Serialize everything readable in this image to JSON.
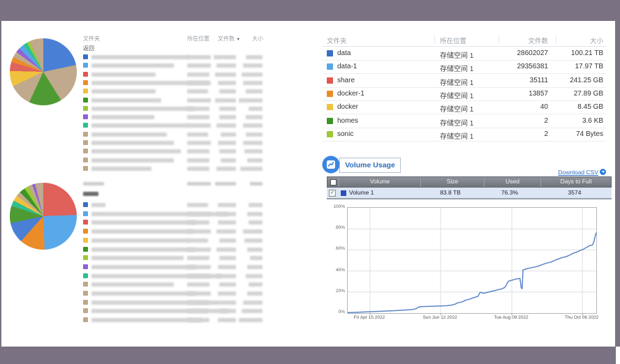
{
  "frame": {
    "accent_color": "#7a7282"
  },
  "left": {
    "table1": {
      "headers": {
        "folder": "文件夹",
        "location": "所在位置",
        "count": "文件数",
        "size": "大小"
      },
      "sort_icon": "▼",
      "back_label": "返回",
      "rows": [
        [
          "#3a6fc4",
          140,
          34,
          32,
          24
        ],
        [
          "#57a7e8",
          118,
          34,
          28,
          28
        ],
        [
          "#e2574f",
          92,
          32,
          30,
          30
        ],
        [
          "#ec8c28",
          168,
          34,
          26,
          28
        ],
        [
          "#f0c13d",
          92,
          30,
          24,
          24
        ],
        [
          "#3d9426",
          100,
          34,
          30,
          34
        ],
        [
          "#9cc83a",
          148,
          32,
          24,
          20
        ],
        [
          "#8f62d8",
          90,
          32,
          24,
          24
        ],
        [
          "#2fbf8f",
          140,
          34,
          28,
          28
        ],
        [
          "#bfa888",
          108,
          30,
          22,
          24
        ],
        [
          "#bfa888",
          118,
          34,
          26,
          28
        ],
        [
          "#bfa888",
          128,
          32,
          24,
          26
        ],
        [
          "#bfa888",
          118,
          32,
          22,
          22
        ],
        [
          "#bfa888",
          86,
          32,
          28,
          32
        ]
      ]
    },
    "table2": {
      "header_bar_widths": [
        30,
        34,
        30,
        18
      ],
      "back_bar_width": 22,
      "rows": [
        [
          "#3a6fc4",
          20,
          30,
          26,
          20
        ],
        [
          "#57a7e8",
          196,
          34,
          28,
          22
        ],
        [
          "#e2574f",
          150,
          32,
          26,
          20
        ],
        [
          "#ec8c28",
          146,
          34,
          28,
          28
        ],
        [
          "#f0c13d",
          140,
          30,
          24,
          26
        ],
        [
          "#3d9426",
          148,
          34,
          28,
          22
        ],
        [
          "#9cc83a",
          132,
          32,
          24,
          18
        ],
        [
          "#8f62d8",
          150,
          34,
          26,
          22
        ],
        [
          "#2fbf8f",
          186,
          34,
          28,
          24
        ],
        [
          "#bfa888",
          118,
          32,
          24,
          20
        ],
        [
          "#bfa888",
          150,
          34,
          26,
          22
        ],
        [
          "#bfa888",
          186,
          32,
          22,
          28
        ],
        [
          "#bfa888",
          196,
          30,
          24,
          30
        ],
        [
          "#bfa888",
          158,
          32,
          26,
          34
        ]
      ]
    }
  },
  "right": {
    "folder_table": {
      "headers": {
        "folder": "文件夹",
        "location": "所在位置",
        "count": "文件数",
        "size": "大小"
      },
      "rows": [
        {
          "name": "data",
          "color": "#3a6fc4",
          "location": "存储空间 1",
          "count": "28602027",
          "size": "100.21 TB"
        },
        {
          "name": "data-1",
          "color": "#57a7e8",
          "location": "存储空间 1",
          "count": "29356381",
          "size": "17.97 TB"
        },
        {
          "name": "share",
          "color": "#e2574f",
          "location": "存储空间 1",
          "count": "35111",
          "size": "241.25 GB"
        },
        {
          "name": "docker-1",
          "color": "#ec8c28",
          "location": "存储空间 1",
          "count": "13857",
          "size": "27.89 GB"
        },
        {
          "name": "docker",
          "color": "#f0c13d",
          "location": "存储空间 1",
          "count": "40",
          "size": "8.45 GB"
        },
        {
          "name": "homes",
          "color": "#3d9426",
          "location": "存储空间 1",
          "count": "2",
          "size": "3.6 KB"
        },
        {
          "name": "sonic",
          "color": "#9cc83a",
          "location": "存储空间 1",
          "count": "2",
          "size": "74 Bytes"
        }
      ]
    },
    "volume_usage": {
      "title": "Volume Usage",
      "download_csv": "Download CSV",
      "table": {
        "headers": [
          "Volume",
          "Size",
          "Used",
          "Days to Full"
        ],
        "rows": [
          {
            "name": "Volume 1",
            "color": "#2b50b8",
            "size": "83.8 TB",
            "used": "76.3%",
            "days_to_full": "3574",
            "checked": true
          }
        ]
      }
    }
  },
  "chart_data": [
    {
      "name": "volume1_usage_over_time",
      "type": "line",
      "series_name": "Volume 1",
      "line_color": "#5b85c6",
      "ylim": [
        0,
        100
      ],
      "yticks": [
        "0%",
        "20%",
        "40%",
        "60%",
        "80%",
        "100%"
      ],
      "xticks": [
        {
          "label": "Fri Apr 15 2022",
          "f": 0.09
        },
        {
          "label": "Sun Jun 12 2022",
          "f": 0.374
        },
        {
          "label": "Tue Aug 09 2022",
          "f": 0.66
        },
        {
          "label": "Thu Oct 06 2022",
          "f": 0.944
        }
      ],
      "points": [
        [
          0,
          0.4
        ],
        [
          0.05,
          0.9
        ],
        [
          0.09,
          1.3
        ],
        [
          0.14,
          1.8
        ],
        [
          0.19,
          2.3
        ],
        [
          0.23,
          2.9
        ],
        [
          0.26,
          3.4
        ],
        [
          0.276,
          4.2
        ],
        [
          0.285,
          5.7
        ],
        [
          0.3,
          6.2
        ],
        [
          0.34,
          6.5
        ],
        [
          0.374,
          6.8
        ],
        [
          0.4,
          7.0
        ],
        [
          0.42,
          7.7
        ],
        [
          0.432,
          8.5
        ],
        [
          0.444,
          9.9
        ],
        [
          0.456,
          10.4
        ],
        [
          0.466,
          11.2
        ],
        [
          0.472,
          12.2
        ],
        [
          0.482,
          12.7
        ],
        [
          0.492,
          13.3
        ],
        [
          0.502,
          14.3
        ],
        [
          0.515,
          15.2
        ],
        [
          0.525,
          16.0
        ],
        [
          0.531,
          19.2
        ],
        [
          0.537,
          19.8
        ],
        [
          0.543,
          18.8
        ],
        [
          0.555,
          19.3
        ],
        [
          0.566,
          19.9
        ],
        [
          0.58,
          20.8
        ],
        [
          0.594,
          21.5
        ],
        [
          0.607,
          22.3
        ],
        [
          0.621,
          23.1
        ],
        [
          0.63,
          24.1
        ],
        [
          0.636,
          25.6
        ],
        [
          0.641,
          28.2
        ],
        [
          0.646,
          30.1
        ],
        [
          0.653,
          30.7
        ],
        [
          0.66,
          31.1
        ],
        [
          0.669,
          31.9
        ],
        [
          0.678,
          32.4
        ],
        [
          0.687,
          32.8
        ],
        [
          0.693,
          33.0
        ],
        [
          0.698,
          24.0
        ],
        [
          0.702,
          23.2
        ],
        [
          0.705,
          41.0
        ],
        [
          0.716,
          41.8
        ],
        [
          0.725,
          42.4
        ],
        [
          0.74,
          43.2
        ],
        [
          0.756,
          43.9
        ],
        [
          0.771,
          45.0
        ],
        [
          0.786,
          46.3
        ],
        [
          0.8,
          47.5
        ],
        [
          0.818,
          48.5
        ],
        [
          0.831,
          49.9
        ],
        [
          0.846,
          51.3
        ],
        [
          0.86,
          52.5
        ],
        [
          0.874,
          53.3
        ],
        [
          0.886,
          54.3
        ],
        [
          0.9,
          55.9
        ],
        [
          0.911,
          57.2
        ],
        [
          0.921,
          57.9
        ],
        [
          0.935,
          59.5
        ],
        [
          0.949,
          60.7
        ],
        [
          0.957,
          61.9
        ],
        [
          0.964,
          62.7
        ],
        [
          0.972,
          64.0
        ],
        [
          0.979,
          64.3
        ],
        [
          0.985,
          64.7
        ],
        [
          0.99,
          67.5
        ],
        [
          0.994,
          71.5
        ],
        [
          0.998,
          75.0
        ],
        [
          1,
          76.5
        ]
      ]
    },
    {
      "name": "folder_size_pie_1",
      "type": "pie",
      "slices": [
        {
          "color": "#4a7fd6",
          "pct": 21.7
        },
        {
          "color": "#c0a98c",
          "pct": 19.4
        },
        {
          "color": "#4f9b33",
          "pct": 15.8
        },
        {
          "color": "#c0a98c",
          "pct": 11.0
        },
        {
          "color": "#f0c13d",
          "pct": 7.5
        },
        {
          "color": "#e0635c",
          "pct": 4.4
        },
        {
          "color": "#ec8c28",
          "pct": 2.5
        },
        {
          "color": "#c0a98c",
          "pct": 2.8
        },
        {
          "color": "#8f62d8",
          "pct": 2.2
        },
        {
          "color": "#57a7e8",
          "pct": 2.5
        },
        {
          "color": "#2fbf8f",
          "pct": 2.0
        },
        {
          "color": "#9cc83a",
          "pct": 1.5
        },
        {
          "color": "#c0a98c",
          "pct": 6.7
        }
      ]
    },
    {
      "name": "folder_size_pie_2",
      "type": "pie",
      "slices": [
        {
          "color": "#e0605a",
          "pct": 24.4
        },
        {
          "color": "#59a8ea",
          "pct": 25.0
        },
        {
          "color": "#ec8c28",
          "pct": 12.2
        },
        {
          "color": "#4a7fd6",
          "pct": 10.0
        },
        {
          "color": "#4f9b33",
          "pct": 8.3
        },
        {
          "color": "#2fbf8f",
          "pct": 2.8
        },
        {
          "color": "#f0c13d",
          "pct": 2.8
        },
        {
          "color": "#c0a98c",
          "pct": 2.2
        },
        {
          "color": "#3d9426",
          "pct": 2.8
        },
        {
          "color": "#9cc83a",
          "pct": 2.2
        },
        {
          "color": "#c0a98c",
          "pct": 1.9
        },
        {
          "color": "#8f62d8",
          "pct": 1.4
        },
        {
          "color": "#c0a98c",
          "pct": 4.0
        }
      ]
    }
  ]
}
